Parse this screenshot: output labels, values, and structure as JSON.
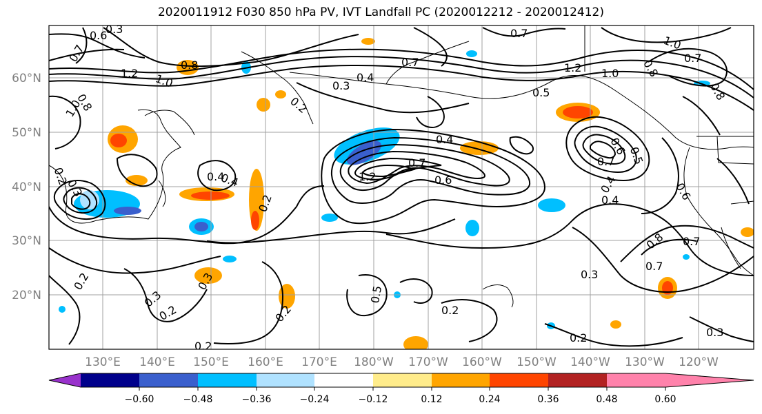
{
  "title": "2020011912 F030 850 hPa PV, IVT Landfall PC (2020012212 - 2020012412)",
  "map": {
    "lat_labels": [
      "60°N",
      "50°N",
      "40°N",
      "30°N",
      "20°N"
    ],
    "lon_labels": [
      "130°E",
      "140°E",
      "150°E",
      "160°E",
      "170°E",
      "180°W",
      "170°W",
      "160°W",
      "150°W",
      "140°W",
      "130°W",
      "120°W"
    ],
    "contour_labels": [
      "0.6",
      "0.3",
      "0.7",
      "1.2",
      "1.0",
      "0.8",
      "0.8",
      "1.0",
      "0.7",
      "0.4",
      "0.3",
      "0.2",
      "0.4",
      "0.4",
      "0.6",
      "0.7",
      "1.2",
      "0.5",
      "0.4",
      "0.6",
      "0.5",
      "0.4",
      "0.7",
      "0.2",
      "0.3",
      "0.2",
      "0.2",
      "0.3",
      "0.2",
      "0.3",
      "0.2",
      "0.2",
      "0.2",
      "0.3",
      "0.7",
      "0.8",
      "0.7",
      "0.2",
      "0.3",
      "0.4",
      "0.5",
      "0.6",
      "0.7",
      "0.8",
      "1.2",
      "1.0",
      "0.8",
      "0.7",
      "1.0"
    ],
    "land_color": "#ffffff",
    "contour_color": "#000000",
    "grid_color": "#a0a0a0"
  },
  "colorbar": {
    "ticks": [
      "−0.60",
      "−0.48",
      "−0.36",
      "−0.24",
      "−0.12",
      "0.12",
      "0.24",
      "0.36",
      "0.48",
      "0.60"
    ],
    "colors": [
      "#9932cc",
      "#00008b",
      "#3a5fcd",
      "#00bfff",
      "#b0e2ff",
      "#ffffff",
      "#ffec8b",
      "#ffa500",
      "#ff4500",
      "#b22222",
      "#ff82ab"
    ],
    "extend": "both"
  }
}
